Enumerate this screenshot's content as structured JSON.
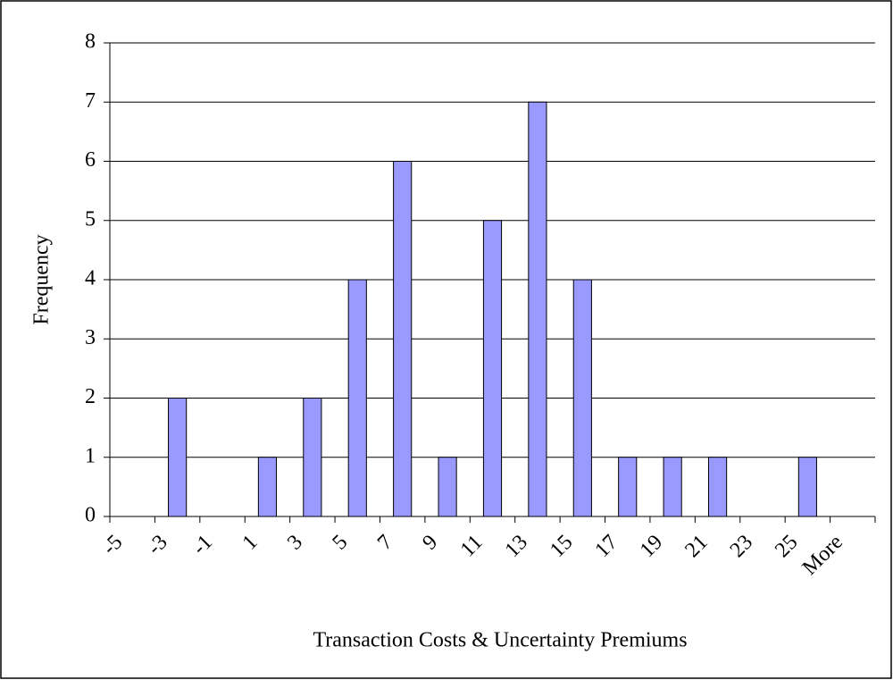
{
  "chart_data": {
    "type": "bar",
    "x_label": "Transaction Costs & Uncertainty Premiums",
    "y_label": "Frequency",
    "categories": [
      "-5",
      "-3",
      "-1",
      "1",
      "3",
      "5",
      "7",
      "9",
      "11",
      "13",
      "15",
      "17",
      "19",
      "21",
      "23",
      "25",
      "More"
    ],
    "values": [
      0,
      2,
      0,
      1,
      2,
      4,
      6,
      1,
      5,
      7,
      4,
      1,
      1,
      1,
      0,
      1,
      0
    ],
    "color": "#9999ff",
    "ylim": [
      0,
      8
    ],
    "yticks": [
      0,
      1,
      2,
      3,
      4,
      5,
      6,
      7,
      8
    ],
    "grid": true
  }
}
